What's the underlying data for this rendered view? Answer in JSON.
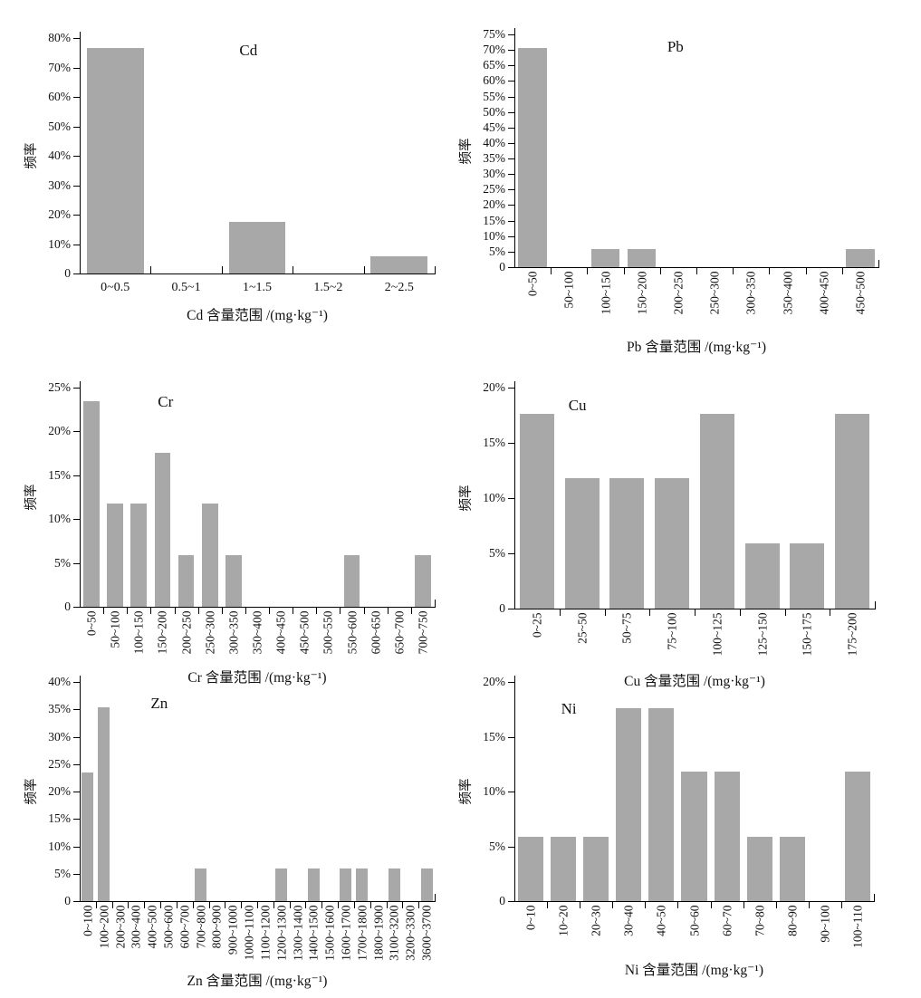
{
  "colors": {
    "bar": "#a8a8a8",
    "axis": "#000000",
    "text": "#111111",
    "background": "#ffffff"
  },
  "chart_data": [
    {
      "type": "bar",
      "title": "Cd",
      "ylabel": "频率",
      "xlabel": "Cd 含量范围 /(mg·kg⁻¹)",
      "categories": [
        "0~0.5",
        "0.5~1",
        "1~1.5",
        "1.5~2",
        "2~2.5"
      ],
      "values": [
        76.5,
        0,
        17.6,
        0,
        5.9
      ],
      "ylim": [
        0,
        80
      ],
      "yticks": [
        "0",
        "10%",
        "20%",
        "30%",
        "40%",
        "50%",
        "60%",
        "70%",
        "80%"
      ],
      "xtick_rotation": 0,
      "grid": false,
      "legend": null
    },
    {
      "type": "bar",
      "title": "Pb",
      "ylabel": "频率",
      "xlabel": "Pb 含量范围 /(mg·kg⁻¹)",
      "categories": [
        "0~50",
        "50~100",
        "100~150",
        "150~200",
        "200~250",
        "250~300",
        "300~350",
        "350~400",
        "400~450",
        "450~500"
      ],
      "values": [
        70.6,
        0,
        5.9,
        5.9,
        0,
        0,
        0,
        0,
        0,
        5.9
      ],
      "ylim": [
        0,
        75
      ],
      "yticks": [
        "0",
        "5%",
        "10%",
        "15%",
        "20%",
        "25%",
        "30%",
        "35%",
        "40%",
        "45%",
        "50%",
        "55%",
        "60%",
        "65%",
        "70%",
        "75%"
      ],
      "xtick_rotation": 90,
      "grid": false,
      "legend": null
    },
    {
      "type": "bar",
      "title": "Cr",
      "ylabel": "频率",
      "xlabel": "Cr 含量范围 /(mg·kg⁻¹)",
      "categories": [
        "0~50",
        "50~100",
        "100~150",
        "150~200",
        "200~250",
        "250~300",
        "300~350",
        "350~400",
        "400~450",
        "450~500",
        "500~550",
        "550~600",
        "600~650",
        "650~700",
        "700~750"
      ],
      "values": [
        23.5,
        11.8,
        11.8,
        17.6,
        5.9,
        11.8,
        5.9,
        0,
        0,
        0,
        0,
        5.9,
        0,
        0,
        5.9
      ],
      "ylim": [
        0,
        25
      ],
      "yticks": [
        "0",
        "5%",
        "10%",
        "15%",
        "20%",
        "25%"
      ],
      "xtick_rotation": 90,
      "grid": false,
      "legend": null
    },
    {
      "type": "bar",
      "title": "Cu",
      "ylabel": "频率",
      "xlabel": "Cu 含量范围 /(mg·kg⁻¹)",
      "categories": [
        "0~25",
        "25~50",
        "50~75",
        "75~100",
        "100~125",
        "125~150",
        "150~175",
        "175~200"
      ],
      "values": [
        17.6,
        11.8,
        11.8,
        11.8,
        17.6,
        5.9,
        5.9,
        17.6
      ],
      "ylim": [
        0,
        20
      ],
      "yticks": [
        "0",
        "5%",
        "10%",
        "15%",
        "20%"
      ],
      "xtick_rotation": 90,
      "grid": false,
      "legend": null
    },
    {
      "type": "bar",
      "title": "Zn",
      "ylabel": "频率",
      "xlabel": "Zn 含量范围 /(mg·kg⁻¹)",
      "categories": [
        "0~100",
        "100~200",
        "200~300",
        "300~400",
        "400~500",
        "500~600",
        "600~700",
        "700~800",
        "800~900",
        "900~1000",
        "1000~1100",
        "1100~1200",
        "1200~1300",
        "1300~1400",
        "1400~1500",
        "1500~1600",
        "1600~1700",
        "1700~1800",
        "1800~1900",
        "3100~3200",
        "3200~3300",
        "3600~3700"
      ],
      "values": [
        23.5,
        35.3,
        0,
        0,
        0,
        0,
        0,
        5.9,
        0,
        0,
        0,
        0,
        5.9,
        0,
        5.9,
        0,
        5.9,
        5.9,
        0,
        5.9,
        0,
        5.9
      ],
      "ylim": [
        0,
        40
      ],
      "yticks": [
        "0",
        "5%",
        "10%",
        "15%",
        "20%",
        "25%",
        "30%",
        "35%",
        "40%"
      ],
      "xtick_rotation": 90,
      "grid": false,
      "legend": null
    },
    {
      "type": "bar",
      "title": "Ni",
      "ylabel": "频率",
      "xlabel": "Ni 含量范围 /(mg·kg⁻¹)",
      "categories": [
        "0~10",
        "10~20",
        "20~30",
        "30~40",
        "40~50",
        "50~60",
        "60~70",
        "70~80",
        "80~90",
        "90~100",
        "100~110"
      ],
      "values": [
        5.9,
        5.9,
        5.9,
        17.6,
        17.6,
        11.8,
        11.8,
        5.9,
        5.9,
        0,
        11.8
      ],
      "ylim": [
        0,
        20
      ],
      "yticks": [
        "0",
        "5%",
        "10%",
        "15%",
        "20%"
      ],
      "xtick_rotation": 90,
      "grid": false,
      "legend": null
    }
  ]
}
